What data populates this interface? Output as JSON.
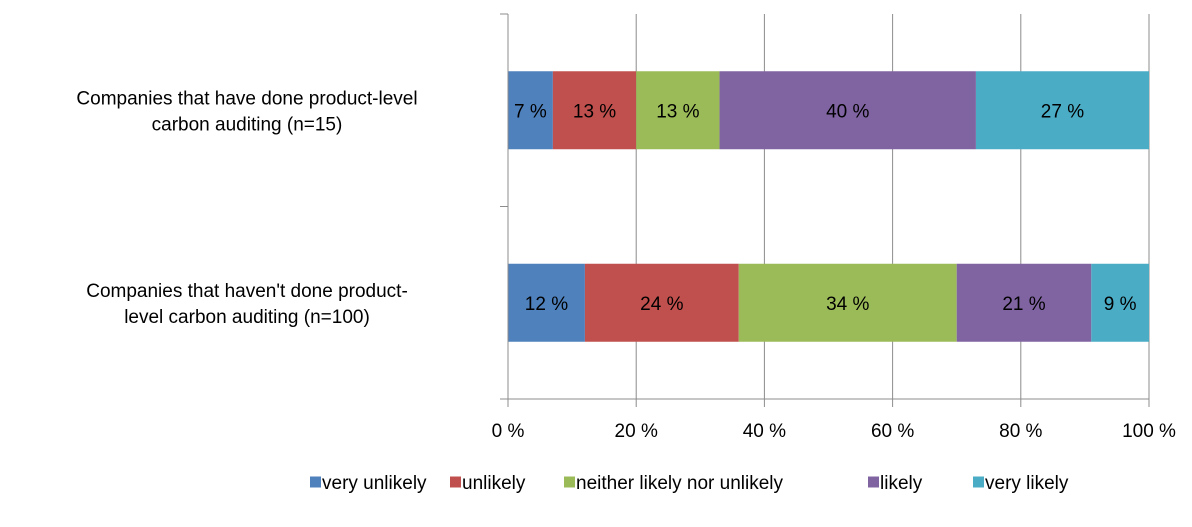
{
  "chart_data": {
    "type": "bar",
    "orientation": "horizontal",
    "stacked": true,
    "percent": true,
    "categories": [
      [
        "Companies that have done product-level",
        "carbon auditing (n=15)"
      ],
      [
        "Companies that haven't done product-",
        "level carbon auditing (n=100)"
      ]
    ],
    "series": [
      {
        "name": "very unlikely",
        "color": "#4F81BD",
        "values": [
          7,
          12
        ],
        "labels": [
          "7 %",
          "12 %"
        ]
      },
      {
        "name": "unlikely",
        "color": "#C0504D",
        "values": [
          13,
          24
        ],
        "labels": [
          "13 %",
          "24 %"
        ]
      },
      {
        "name": "neither likely nor unlikely",
        "color": "#9BBB59",
        "values": [
          13,
          34
        ],
        "labels": [
          "13 %",
          "34 %"
        ]
      },
      {
        "name": "likely",
        "color": "#8064A2",
        "values": [
          40,
          21
        ],
        "labels": [
          "40 %",
          "21 %"
        ]
      },
      {
        "name": "very likely",
        "color": "#4BACC6",
        "values": [
          27,
          9
        ],
        "labels": [
          "27 %",
          "9 %"
        ]
      }
    ],
    "xlim": [
      0,
      100
    ],
    "xticks": [
      0,
      20,
      40,
      60,
      80,
      100
    ],
    "xtick_labels": [
      "0 %",
      "20 %",
      "40 %",
      "60 %",
      "80 %",
      "100 %"
    ],
    "grid": "vertical",
    "legend_position": "bottom",
    "title": "",
    "xlabel": "",
    "ylabel": ""
  }
}
